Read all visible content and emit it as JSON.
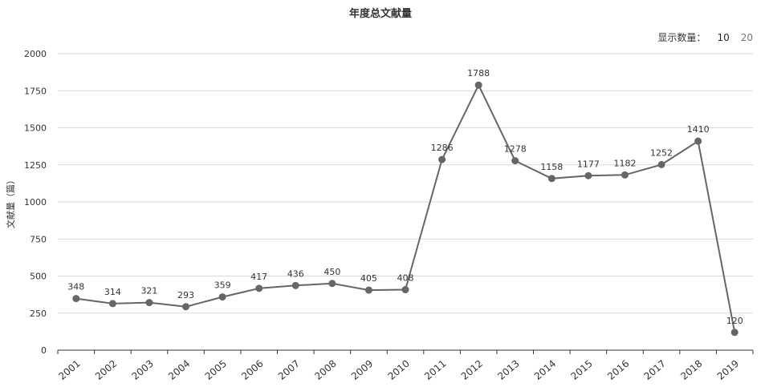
{
  "chart_data": {
    "type": "line",
    "title": "年度总文献量",
    "ylabel": "文献量（篇）",
    "xlabel": "",
    "x": [
      "2001",
      "2002",
      "2003",
      "2004",
      "2005",
      "2006",
      "2007",
      "2008",
      "2009",
      "2010",
      "2011",
      "2012",
      "2013",
      "2014",
      "2015",
      "2016",
      "2017",
      "2018",
      "2019"
    ],
    "series": [
      {
        "values": [
          348,
          314,
          321,
          293,
          359,
          417,
          436,
          450,
          405,
          408,
          1286,
          1788,
          1278,
          1158,
          1177,
          1182,
          1252,
          1410,
          120
        ]
      }
    ],
    "ylim": [
      0,
      2000
    ],
    "yticks": [
      0,
      250,
      500,
      750,
      1000,
      1250,
      1500,
      1750,
      2000
    ],
    "grid": true,
    "line_color": "#666666"
  },
  "controls": {
    "display_count_label": "显示数量：",
    "options": [
      "10",
      "20"
    ]
  }
}
